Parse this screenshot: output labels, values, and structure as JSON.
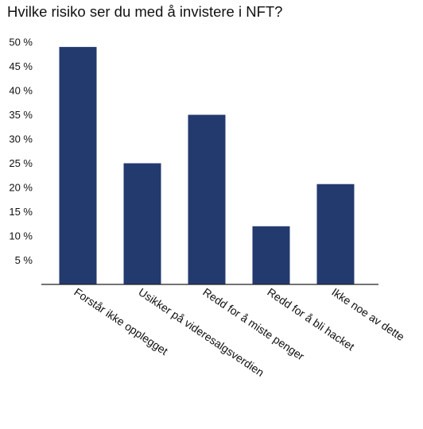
{
  "chart_data": {
    "type": "bar",
    "title": "Hvilke risiko ser du med å invistere i NFT?",
    "categories": [
      "Forstår ikke opplegget",
      "Usikker på videresalgsverdien",
      "Redd for å miste penger",
      "Redd for å bli hacket",
      "Ikke noe av dette"
    ],
    "values": [
      49,
      25,
      35,
      12,
      20.7
    ],
    "ylim": [
      0,
      50
    ],
    "y_ticks": [
      "5 %",
      "10 %",
      "15 %",
      "20 %",
      "25 %",
      "30 %",
      "35 %",
      "40 %",
      "45 %",
      "50 %"
    ],
    "grid": false,
    "bar_color": "#233a6f"
  }
}
